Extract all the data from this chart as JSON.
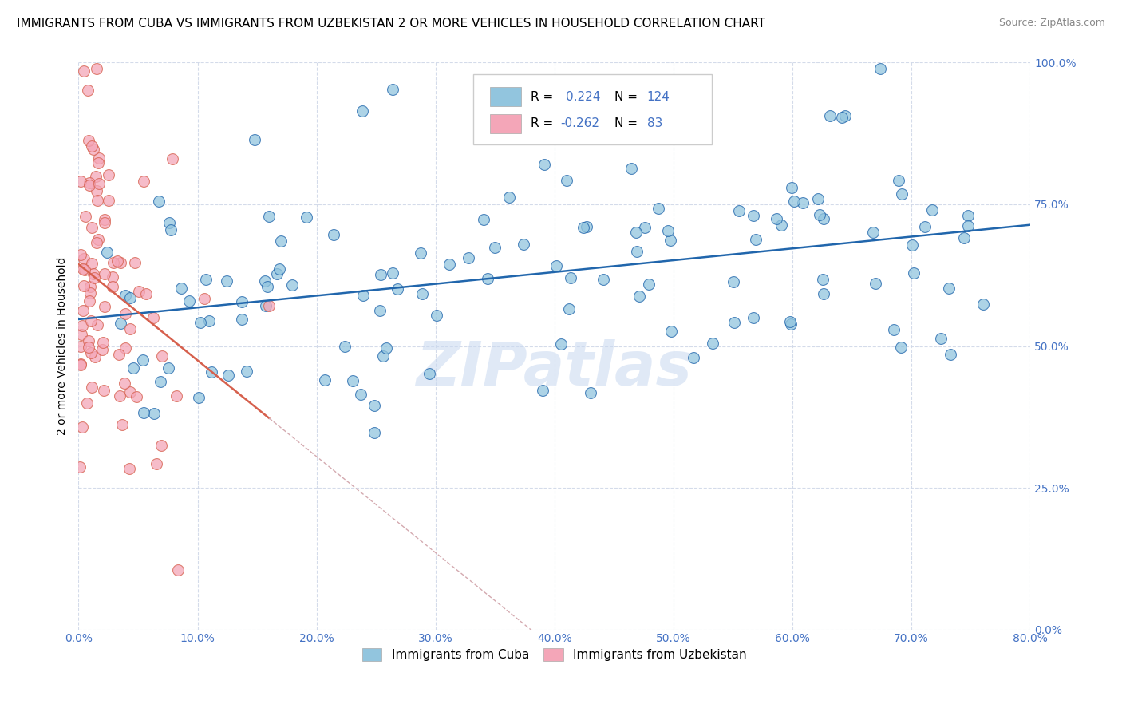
{
  "title": "IMMIGRANTS FROM CUBA VS IMMIGRANTS FROM UZBEKISTAN 2 OR MORE VEHICLES IN HOUSEHOLD CORRELATION CHART",
  "source": "Source: ZipAtlas.com",
  "ylabel": "2 or more Vehicles in Household",
  "watermark": "ZIPatlas",
  "xmin": 0.0,
  "xmax": 0.8,
  "ymin": 0.0,
  "ymax": 1.0,
  "blue_color": "#92c5de",
  "pink_color": "#f4a6b8",
  "blue_line_color": "#2166ac",
  "pink_line_color": "#d6604d",
  "pink_dash_color": "#d4aab0",
  "R_blue": 0.224,
  "R_pink": -0.262,
  "N_blue": 124,
  "N_pink": 83,
  "blue_intercept": 0.555,
  "blue_slope": 0.165,
  "pink_intercept": 0.685,
  "pink_slope": -2.1,
  "title_fontsize": 11,
  "source_fontsize": 9,
  "tick_fontsize": 10,
  "ylabel_fontsize": 10,
  "legend_fontsize": 11,
  "watermark_fontsize": 55
}
